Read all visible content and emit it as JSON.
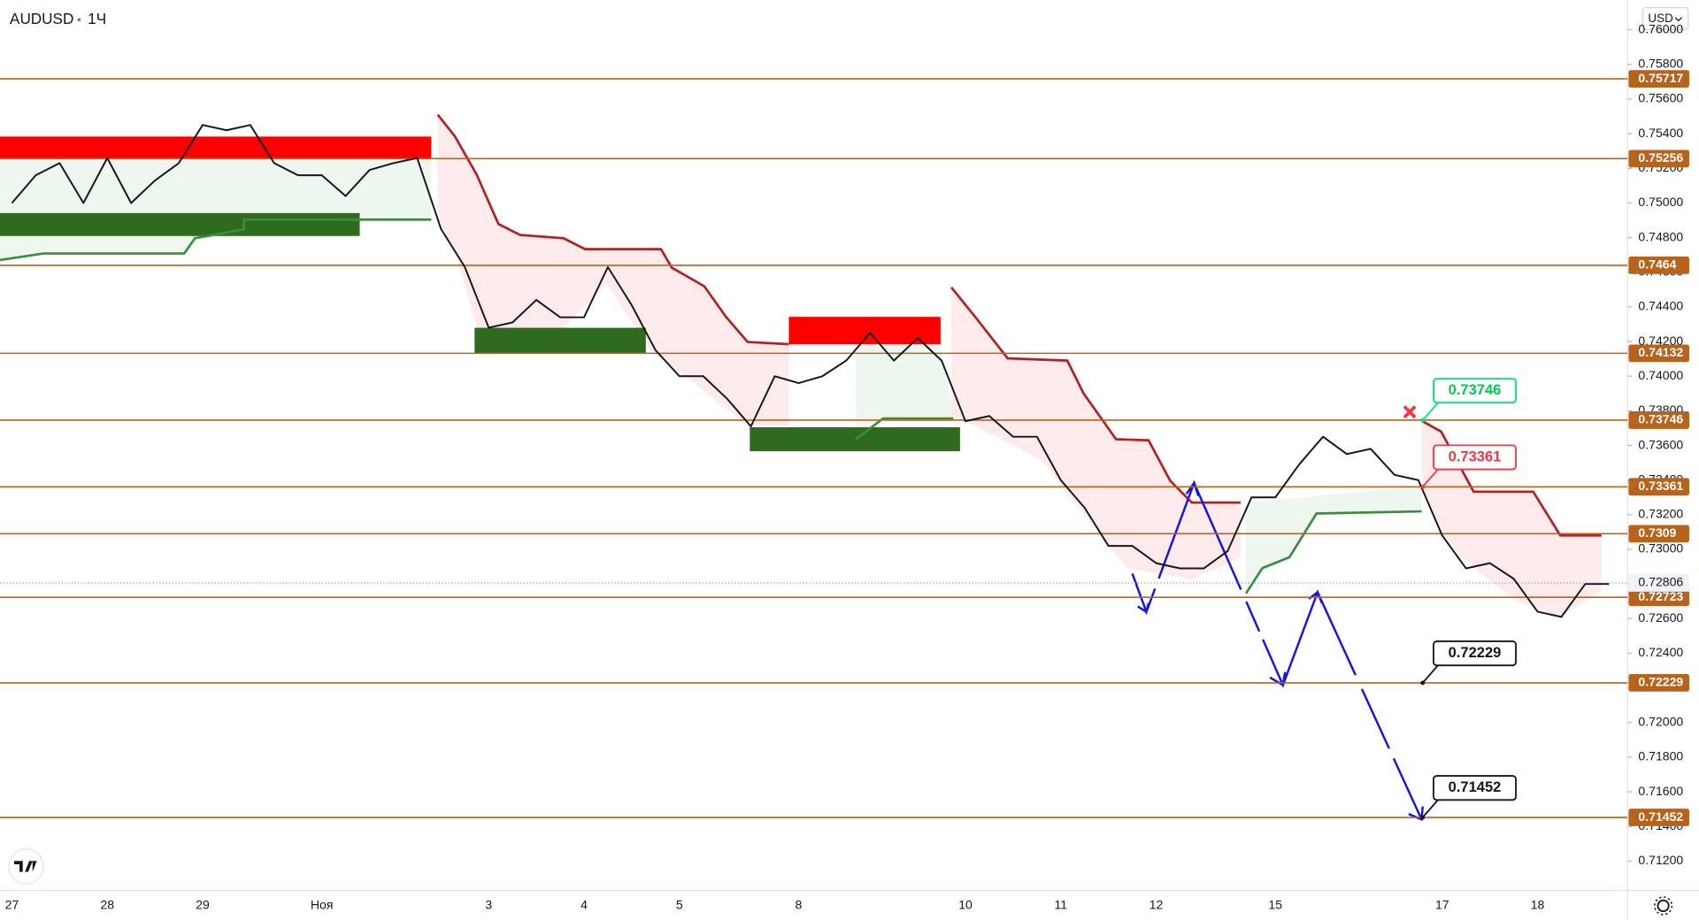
{
  "chart_data": {
    "type": "line",
    "symbol": "AUDUSD",
    "interval": "1Ч",
    "currency": "USD",
    "color": "#131722",
    "categories": [
      "27",
      null,
      null,
      null,
      "28",
      null,
      null,
      null,
      "29",
      null,
      null,
      null,
      null,
      "Ноя",
      null,
      null,
      null,
      null,
      null,
      null,
      "3",
      null,
      null,
      null,
      "4",
      null,
      null,
      null,
      "5",
      null,
      null,
      null,
      null,
      "8",
      null,
      null,
      null,
      null,
      null,
      null,
      "10",
      null,
      null,
      null,
      "11",
      null,
      null,
      null,
      "12",
      null,
      null,
      null,
      null,
      "15",
      null,
      null,
      null,
      null,
      null,
      null,
      "17",
      null,
      null,
      null,
      "18",
      null,
      null,
      null
    ],
    "values": [
      0.75,
      0.7516,
      0.7523,
      0.75,
      0.7526,
      0.75,
      0.7513,
      0.7523,
      0.7545,
      0.7542,
      0.7545,
      0.7523,
      0.7516,
      0.7516,
      0.7504,
      0.7519,
      0.7523,
      0.7526,
      0.7485,
      0.7463,
      0.7428,
      0.7431,
      0.7444,
      0.7434,
      0.7434,
      0.7463,
      0.7441,
      0.7415,
      0.74,
      0.74,
      0.7387,
      0.7371,
      0.74,
      0.7396,
      0.74,
      0.7409,
      0.7425,
      0.7409,
      0.7422,
      0.7409,
      0.7374,
      0.7377,
      0.7365,
      0.7365,
      0.734,
      0.7324,
      0.7302,
      0.7302,
      0.7292,
      0.7289,
      0.7289,
      0.7299,
      0.733,
      0.733,
      0.7349,
      0.7365,
      0.7355,
      0.7358,
      0.7343,
      0.734,
      0.7308,
      0.7289,
      0.7292,
      0.7283,
      0.7264,
      0.7261,
      0.728,
      0.728
    ],
    "ylim": [
      0.7103,
      0.76172
    ],
    "yticks": [
      {
        "value": 0.712,
        "label": "0.71200"
      },
      {
        "value": 0.714,
        "label": "0.71400"
      },
      {
        "value": 0.716,
        "label": "0.71600"
      },
      {
        "value": 0.718,
        "label": "0.71800"
      },
      {
        "value": 0.72,
        "label": "0.72000"
      },
      {
        "value": 0.722,
        "label": "0.72200"
      },
      {
        "value": 0.724,
        "label": "0.72400"
      },
      {
        "value": 0.726,
        "label": "0.72600"
      },
      {
        "value": 0.728,
        "label": "0.72800"
      },
      {
        "value": 0.73,
        "label": "0.73000"
      },
      {
        "value": 0.732,
        "label": "0.73200"
      },
      {
        "value": 0.734,
        "label": "0.73400"
      },
      {
        "value": 0.736,
        "label": "0.73600"
      },
      {
        "value": 0.738,
        "label": "0.73800"
      },
      {
        "value": 0.74,
        "label": "0.74000"
      },
      {
        "value": 0.742,
        "label": "0.74200"
      },
      {
        "value": 0.744,
        "label": "0.74400"
      },
      {
        "value": 0.746,
        "label": "0.74600"
      },
      {
        "value": 0.748,
        "label": "0.74800"
      },
      {
        "value": 0.75,
        "label": "0.75000"
      },
      {
        "value": 0.752,
        "label": "0.75200"
      },
      {
        "value": 0.754,
        "label": "0.75400"
      },
      {
        "value": 0.756,
        "label": "0.75600"
      },
      {
        "value": 0.758,
        "label": "0.75800"
      },
      {
        "value": 0.76,
        "label": "0.76000"
      }
    ],
    "levels": [
      0.75717,
      0.75256,
      0.7464,
      0.74132,
      0.73746,
      0.73361,
      0.7309,
      0.72723,
      0.72229,
      0.71452
    ],
    "level_color": "#b8631c",
    "last_price": 0.72806,
    "callouts": [
      {
        "value": 0.73746,
        "color": "#00e676"
      },
      {
        "value": 0.73361,
        "color": "#f23645"
      },
      {
        "value": 0.72229,
        "color": "#131722"
      },
      {
        "value": 0.71452,
        "color": "#131722"
      }
    ]
  }
}
